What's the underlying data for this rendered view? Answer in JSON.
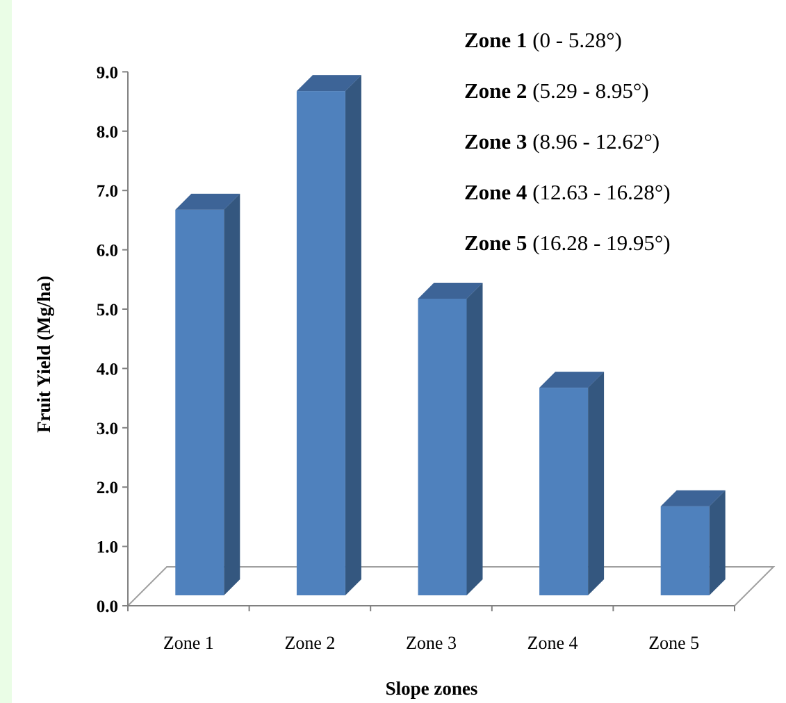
{
  "chart_data": {
    "type": "bar",
    "style": "3d-column",
    "categories": [
      "Zone 1",
      "Zone 2",
      "Zone 3",
      "Zone 4",
      "Zone 5"
    ],
    "values": [
      6.5,
      8.5,
      5.0,
      3.5,
      1.5
    ],
    "ylabel": "Fruit Yield (Mg/ha)",
    "xlabel": "Slope zones",
    "ylim": [
      0,
      9
    ],
    "yticks": [
      "0.0",
      "1.0",
      "2.0",
      "3.0",
      "4.0",
      "5.0",
      "6.0",
      "7.0",
      "8.0",
      "9.0"
    ],
    "grid": false,
    "colors": {
      "bar_front": "#4f81bd",
      "bar_side": "#34577f",
      "bar_top": "#3d6497"
    },
    "legend_position": "top-right",
    "legend": [
      {
        "zone": "Zone 1",
        "range": "(0 - 5.28°)"
      },
      {
        "zone": "Zone 2",
        "range": "(5.29 - 8.95°)"
      },
      {
        "zone": "Zone 3",
        "range": "(8.96 - 12.62°)"
      },
      {
        "zone": "Zone 4",
        "range": "(12.63 - 16.28°)"
      },
      {
        "zone": "Zone 5",
        "range": "(16.28 - 19.95°)"
      }
    ]
  }
}
